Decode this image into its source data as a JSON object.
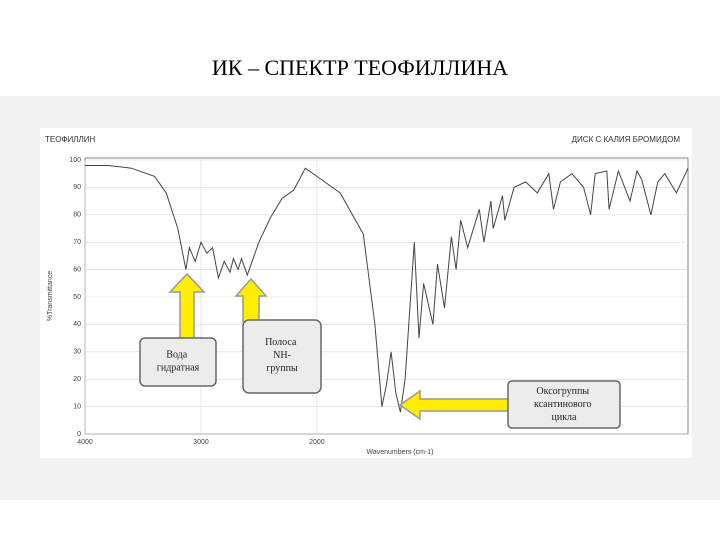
{
  "chart_data": {
    "type": "line",
    "title": "ИК – СПЕКТР ТЕОФИЛЛИНА",
    "sample_label": "ТЕОФИЛЛИН",
    "method_label": "ДИСК С КАЛИЯ БРОМИДОМ",
    "x_label": "Wavenumbers (cm-1)",
    "y_label": "%Transmittance",
    "xlim": [
      4000,
      400
    ],
    "xscale_change_at": 2000,
    "xticks": [
      4000,
      3000,
      2000
    ],
    "ylim": [
      0,
      100
    ],
    "yticks": [
      0,
      10,
      20,
      30,
      40,
      50,
      60,
      70,
      80,
      90,
      100
    ],
    "grid": true,
    "annotations": [
      "Вода гидратная",
      "Полоса NH-группы",
      "Оксогруппы ксантинового цикла"
    ],
    "series": [
      {
        "name": "ТЕОФИЛЛИН",
        "color": "#444444",
        "x": [
          4000,
          3800,
          3600,
          3400,
          3300,
          3200,
          3130,
          3100,
          3050,
          3000,
          2950,
          2900,
          2850,
          2800,
          2750,
          2720,
          2680,
          2650,
          2600,
          2550,
          2500,
          2400,
          2300,
          2200,
          2100,
          2000,
          1900,
          1800,
          1750,
          1720,
          1700,
          1680,
          1660,
          1640,
          1620,
          1600,
          1580,
          1560,
          1540,
          1500,
          1480,
          1450,
          1420,
          1400,
          1380,
          1350,
          1300,
          1280,
          1250,
          1240,
          1200,
          1190,
          1150,
          1100,
          1050,
          1000,
          980,
          950,
          900,
          850,
          820,
          800,
          750,
          740,
          700,
          650,
          620,
          600,
          560,
          530,
          500,
          450,
          400
        ],
        "values": [
          98,
          98,
          97,
          94,
          88,
          75,
          60,
          68,
          63,
          70,
          66,
          68,
          57,
          63,
          59,
          64,
          60,
          64,
          58,
          64,
          70,
          79,
          86,
          89,
          97,
          94,
          88,
          73,
          40,
          10,
          18,
          30,
          15,
          8,
          20,
          45,
          70,
          35,
          55,
          40,
          62,
          46,
          72,
          60,
          78,
          68,
          82,
          70,
          85,
          75,
          87,
          78,
          90,
          92,
          88,
          95,
          82,
          92,
          95,
          90,
          80,
          95,
          96,
          82,
          96,
          85,
          96,
          93,
          80,
          92,
          95,
          88,
          97
        ]
      }
    ]
  }
}
